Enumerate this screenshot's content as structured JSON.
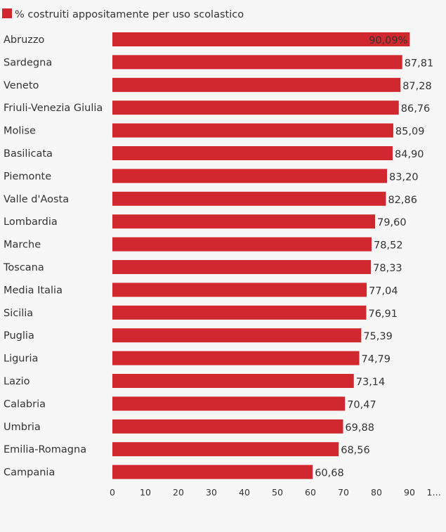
{
  "chart_data": {
    "type": "bar",
    "orientation": "horizontal",
    "legend": {
      "label": "% costruiti appositamente per uso scolastico",
      "position": "top-left"
    },
    "series": [
      {
        "name": "% costruiti appositamente per uso scolastico",
        "color": "#d0282e",
        "values": [
          90.09,
          87.81,
          87.28,
          86.76,
          85.09,
          84.9,
          83.2,
          82.86,
          79.6,
          78.52,
          78.33,
          77.04,
          76.91,
          75.39,
          74.79,
          73.14,
          70.47,
          69.88,
          68.56,
          60.68
        ]
      }
    ],
    "categories": [
      "Abruzzo",
      "Sardegna",
      "Veneto",
      "Friuli-Venezia Giulia",
      "Molise",
      "Basilicata",
      "Piemonte",
      "Valle d'Aosta",
      "Lombardia",
      "Marche",
      "Toscana",
      "Media Italia",
      "Sicilia",
      "Puglia",
      "Liguria",
      "Lazio",
      "Calabria",
      "Umbria",
      "Emilia-Romagna",
      "Campania"
    ],
    "value_labels": [
      "90,09%",
      "87,81",
      "87,28",
      "86,76",
      "85,09",
      "84,90",
      "83,20",
      "82,86",
      "79,60",
      "78,52",
      "78,33",
      "77,04",
      "76,91",
      "75,39",
      "74,79",
      "73,14",
      "70,47",
      "69,88",
      "68,56",
      "60,68"
    ],
    "x_ticks": [
      "0",
      "10",
      "20",
      "30",
      "40",
      "50",
      "60",
      "70",
      "80",
      "90",
      "1…"
    ],
    "xlim": [
      0,
      100
    ],
    "grid": false
  }
}
